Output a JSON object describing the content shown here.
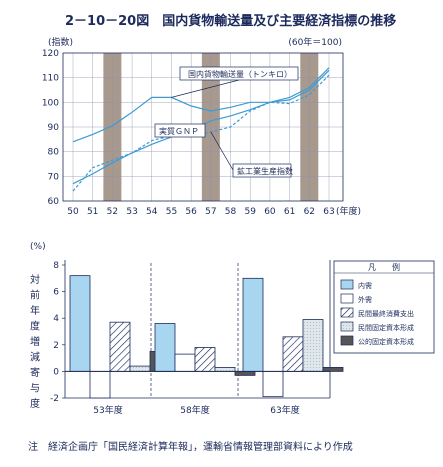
{
  "figure": {
    "title": "2－10－20図　国内貨物輸送量及び主要経済指標の推移",
    "note": "注　経済企画庁「国民経済計算年報」，運輸省情報管理部資料により作成"
  },
  "chart_data": [
    {
      "type": "line",
      "y_unit": "(指数)",
      "base_note": "(60年＝100)",
      "xlabel": "(年度)",
      "x_ticks": [
        "50",
        "51",
        "52",
        "53",
        "54",
        "55",
        "56",
        "57",
        "58",
        "59",
        "60",
        "61",
        "62",
        "63"
      ],
      "y_ticks": [
        60,
        70,
        80,
        90,
        100,
        110,
        120
      ],
      "ylim": [
        60,
        120
      ],
      "grid": true,
      "shaded_years": [
        "52",
        "57",
        "62"
      ],
      "series": [
        {
          "name": "国内貨物輸送量（トンキロ）",
          "style": "solid",
          "values": [
            84,
            87,
            90.5,
            96,
            102,
            102,
            98.5,
            96.5,
            98,
            100,
            100,
            101,
            105,
            113
          ]
        },
        {
          "name": "実質ＧＮＰ",
          "style": "solid",
          "values": [
            67,
            71,
            75.5,
            79.5,
            83,
            86,
            88.5,
            92.5,
            94.5,
            97,
            100,
            102,
            106,
            114
          ]
        },
        {
          "name": "鉱工業生産指数",
          "style": "dashed",
          "values": [
            64,
            73.5,
            76.5,
            79.5,
            84.5,
            86.5,
            86,
            88,
            90,
            96.5,
            100,
            99.5,
            103,
            111
          ]
        }
      ]
    },
    {
      "type": "bar",
      "y_unit": "(%)",
      "ylabel": "対前年度増減寄与度",
      "ylim": [
        -2,
        8
      ],
      "y_ticks": [
        -2,
        0,
        2,
        4,
        6,
        8
      ],
      "categories": [
        "53年度",
        "58年度",
        "63年度"
      ],
      "legend_title": "凡　　例",
      "series": [
        {
          "name": "内需",
          "fill": "#a8d6f0",
          "values": [
            7.2,
            3.6,
            7.0
          ]
        },
        {
          "name": "外需",
          "fill": "#ffffff",
          "values": [
            -2.0,
            1.3,
            -1.9
          ]
        },
        {
          "name": "民間最終消費支出",
          "fill": "hatch",
          "values": [
            3.7,
            1.8,
            2.6
          ]
        },
        {
          "name": "民間固定資本形成",
          "fill": "light",
          "values": [
            0.4,
            0.3,
            3.9
          ]
        },
        {
          "name": "公的固定資本形成",
          "fill": "#555555",
          "values": [
            1.5,
            -0.3,
            0.3
          ]
        }
      ]
    }
  ]
}
